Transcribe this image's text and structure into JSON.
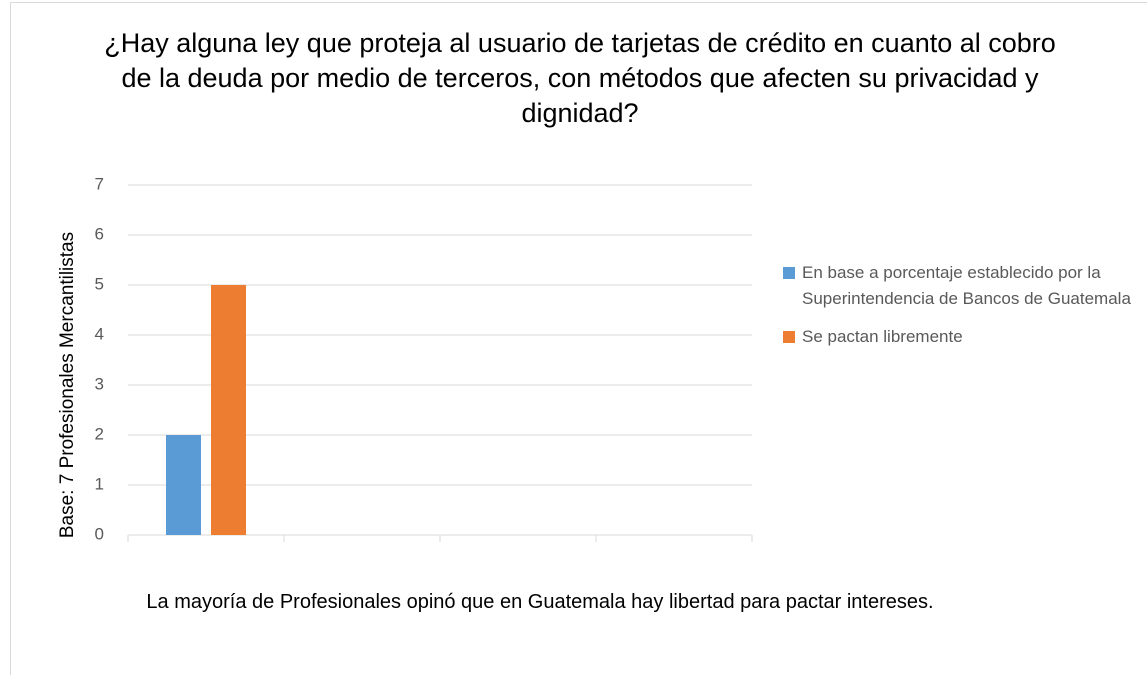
{
  "chart_data": {
    "type": "bar",
    "title": "¿Hay alguna ley que proteja al usuario de tarjetas de crédito en cuanto al cobro de la deuda por medio de terceros, con métodos que afecten su privacidad y dignidad?",
    "y_label": "Base: 7 Profesionales Mercantilistas",
    "x_label": "La mayoría de Profesionales opinó que en Guatemala hay libertad para pactar intereses.",
    "categories": [
      null,
      null,
      null,
      null
    ],
    "series": [
      {
        "name": "En base a porcentaje establecido por la Superintendencia de Bancos de Guatemala",
        "color": "#5b9bd5",
        "values": [
          2,
          null,
          null,
          null
        ]
      },
      {
        "name": "Se pactan libremente",
        "color": "#ed7d31",
        "values": [
          5,
          null,
          null,
          null
        ]
      }
    ],
    "ylim": [
      0,
      7
    ],
    "yticks": [
      0,
      1,
      2,
      3,
      4,
      5,
      6,
      7
    ],
    "grid": true,
    "legend": "right"
  }
}
